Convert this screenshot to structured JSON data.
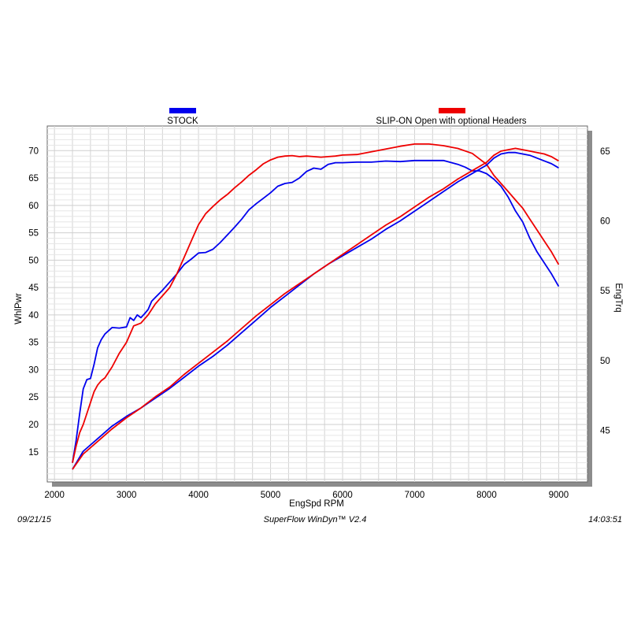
{
  "chart_data": {
    "type": "line",
    "legend": {
      "placement": "top",
      "entries": [
        {
          "name": "STOCK",
          "color": "#0000ee"
        },
        {
          "name": "SLIP-ON Open with optional Headers",
          "color": "#ee0000"
        }
      ]
    },
    "xlabel": "EngSpd  RPM",
    "ylabel_left": "WhlPwr",
    "ylabel_right": "EngTrq",
    "xlim": [
      1900,
      9400
    ],
    "ylim_left": [
      9.5,
      74.5
    ],
    "ylim_right": [
      41.3,
      66.8
    ],
    "x_ticks": [
      2000,
      3000,
      4000,
      5000,
      6000,
      7000,
      8000,
      9000
    ],
    "y_left_ticks": [
      15,
      20,
      25,
      30,
      35,
      40,
      45,
      50,
      55,
      60,
      65,
      70
    ],
    "y_right_ticks": [
      45,
      50,
      55,
      60,
      65
    ],
    "grid": true,
    "series": [
      {
        "name": "STOCK",
        "measure": "WhlPwr",
        "axis": "left",
        "color": "#0000ee",
        "x": [
          2250,
          2300,
          2350,
          2400,
          2450,
          2500,
          2550,
          2600,
          2650,
          2700,
          2800,
          2900,
          3000,
          3050,
          3100,
          3150,
          3200,
          3250,
          3300,
          3350,
          3400,
          3500,
          3600,
          3700,
          3800,
          3900,
          4000,
          4100,
          4200,
          4300,
          4400,
          4500,
          4600,
          4700,
          4800,
          4900,
          5000,
          5100,
          5200,
          5300,
          5400,
          5500,
          5600,
          5700,
          5800,
          5900,
          6000,
          6200,
          6400,
          6600,
          6800,
          7000,
          7200,
          7400,
          7600,
          7700,
          7800,
          7900,
          8000,
          8100,
          8200,
          8300,
          8400,
          8500,
          8600,
          8700,
          8800,
          8900,
          9000
        ],
        "values": [
          13,
          17,
          22,
          26.5,
          28.2,
          28.4,
          31,
          34,
          35.5,
          36.5,
          37.7,
          37.6,
          37.8,
          39.5,
          39,
          40,
          39.5,
          40.2,
          41,
          42.5,
          43.2,
          44.5,
          46,
          47.5,
          49.2,
          50.2,
          51.3,
          51.4,
          52,
          53.2,
          54.6,
          56,
          57.5,
          59.2,
          60.3,
          61.3,
          62.3,
          63.5,
          64,
          64.2,
          65,
          66.2,
          66.8,
          66.6,
          67.5,
          67.8,
          67.8,
          67.9,
          67.9,
          68.1,
          68,
          68.2,
          68.2,
          68.2,
          67.5,
          67,
          66.3,
          66.3,
          65.8,
          64.8,
          63.5,
          61.5,
          59,
          57,
          54,
          51.5,
          49.5,
          47.5,
          45.2
        ]
      },
      {
        "name": "SLIP-ON Open with optional Headers",
        "measure": "WhlPwr",
        "axis": "left",
        "color": "#ee0000",
        "x": [
          2250,
          2300,
          2350,
          2400,
          2450,
          2500,
          2550,
          2600,
          2650,
          2700,
          2800,
          2900,
          3000,
          3100,
          3200,
          3300,
          3400,
          3500,
          3600,
          3700,
          3800,
          3900,
          4000,
          4100,
          4200,
          4300,
          4400,
          4500,
          4600,
          4700,
          4800,
          4900,
          5000,
          5100,
          5200,
          5300,
          5400,
          5500,
          5600,
          5700,
          5800,
          5900,
          6000,
          6200,
          6400,
          6600,
          6800,
          7000,
          7200,
          7400,
          7600,
          7800,
          8000,
          8100,
          8200,
          8300,
          8400,
          8500,
          8600,
          8700,
          8800,
          8900,
          9000
        ],
        "values": [
          13,
          16,
          18.5,
          20,
          22,
          24,
          26,
          27.2,
          28,
          28.5,
          30.5,
          33,
          35,
          38,
          38.5,
          40,
          42,
          43.5,
          45,
          47.5,
          50.5,
          53.5,
          56.5,
          58.5,
          59.8,
          61,
          62,
          63.2,
          64.3,
          65.5,
          66.5,
          67.6,
          68.3,
          68.8,
          69,
          69.1,
          68.9,
          69,
          68.9,
          68.8,
          68.9,
          69,
          69.2,
          69.3,
          69.8,
          70.3,
          70.8,
          71.2,
          71.2,
          70.9,
          70.4,
          69.5,
          67.5,
          65.5,
          64,
          62.5,
          61,
          59.5,
          57.5,
          55.5,
          53.5,
          51.5,
          49.2
        ]
      },
      {
        "name": "STOCK",
        "measure": "EngTrq",
        "axis": "right",
        "color": "#0000ee",
        "x": [
          2250,
          2400,
          2600,
          2800,
          3000,
          3200,
          3400,
          3600,
          3800,
          4000,
          4200,
          4400,
          4600,
          4800,
          5000,
          5200,
          5400,
          5600,
          5800,
          6000,
          6200,
          6400,
          6600,
          6800,
          7000,
          7200,
          7400,
          7600,
          7800,
          8000,
          8100,
          8200,
          8300,
          8400,
          8500,
          8600,
          8700,
          8800,
          8900,
          9000
        ],
        "values": [
          42.2,
          43.5,
          44.4,
          45.3,
          46,
          46.6,
          47.3,
          48,
          48.8,
          49.6,
          50.3,
          51.1,
          52,
          52.9,
          53.8,
          54.6,
          55.4,
          56.2,
          56.9,
          57.5,
          58.1,
          58.7,
          59.4,
          60,
          60.7,
          61.4,
          62.1,
          62.8,
          63.4,
          64,
          64.5,
          64.8,
          64.9,
          64.9,
          64.8,
          64.7,
          64.5,
          64.3,
          64.1,
          63.8
        ]
      },
      {
        "name": "SLIP-ON Open with optional Headers",
        "measure": "EngTrq",
        "axis": "right",
        "color": "#ee0000",
        "x": [
          2250,
          2400,
          2600,
          2800,
          3000,
          3200,
          3400,
          3600,
          3800,
          4000,
          4200,
          4400,
          4600,
          4800,
          5000,
          5200,
          5400,
          5600,
          5800,
          6000,
          6200,
          6400,
          6600,
          6800,
          7000,
          7200,
          7400,
          7600,
          7800,
          8000,
          8100,
          8200,
          8300,
          8400,
          8500,
          8600,
          8700,
          8800,
          8900,
          9000
        ],
        "values": [
          42.2,
          43.3,
          44.2,
          45.1,
          45.9,
          46.6,
          47.4,
          48.1,
          49,
          49.8,
          50.6,
          51.4,
          52.3,
          53.2,
          54,
          54.8,
          55.5,
          56.2,
          56.9,
          57.6,
          58.3,
          59,
          59.7,
          60.3,
          61,
          61.7,
          62.3,
          63,
          63.6,
          64.2,
          64.7,
          65,
          65.1,
          65.2,
          65.1,
          65,
          64.9,
          64.8,
          64.6,
          64.3
        ]
      }
    ]
  },
  "footer": {
    "date": "09/21/15",
    "software": "SuperFlow WinDyn™  V2.4",
    "time": "14:03:51"
  }
}
